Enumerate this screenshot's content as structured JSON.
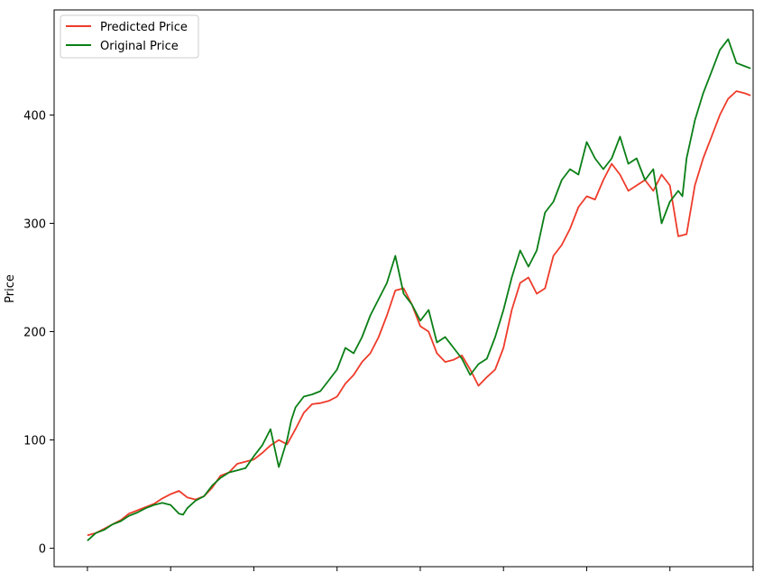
{
  "chart_data": {
    "type": "line",
    "title": "",
    "xlabel": "",
    "ylabel": "Price",
    "xlim": [
      -40,
      800
    ],
    "ylim": [
      -17,
      497
    ],
    "y_ticks": [
      0,
      100,
      200,
      300,
      400
    ],
    "x_tick_count": 9,
    "x_tick_labels_visible": false,
    "grid": false,
    "legend_position": "top-left",
    "series": [
      {
        "name": "Predicted Price",
        "color": "#ee3b2a",
        "x": [
          0,
          10,
          20,
          30,
          40,
          50,
          60,
          70,
          80,
          90,
          100,
          110,
          120,
          130,
          140,
          150,
          160,
          170,
          180,
          190,
          200,
          210,
          220,
          230,
          240,
          250,
          260,
          270,
          280,
          290,
          300,
          310,
          320,
          330,
          340,
          350,
          360,
          370,
          380,
          390,
          400,
          410,
          420,
          430,
          440,
          450,
          460,
          470,
          480,
          490,
          500,
          510,
          520,
          530,
          540,
          550,
          560,
          570,
          580,
          590,
          600,
          610,
          620,
          630,
          640,
          650,
          660,
          670,
          680,
          690,
          700,
          710,
          720,
          730,
          740,
          750,
          760,
          770,
          780,
          790,
          797
        ],
        "y": [
          12,
          14,
          18,
          22,
          26,
          32,
          35,
          38,
          41,
          46,
          50,
          53,
          47,
          45,
          48,
          56,
          67,
          70,
          78,
          80,
          82,
          88,
          95,
          100,
          96,
          110,
          125,
          133,
          134,
          136,
          140,
          152,
          160,
          172,
          180,
          195,
          215,
          238,
          240,
          225,
          205,
          200,
          180,
          172,
          174,
          178,
          165,
          150,
          158,
          165,
          185,
          220,
          245,
          250,
          235,
          240,
          270,
          280,
          295,
          315,
          325,
          322,
          340,
          355,
          345,
          330,
          335,
          340,
          330,
          345,
          335,
          288,
          290,
          335,
          360,
          380,
          400,
          415,
          422,
          420,
          418
        ]
      },
      {
        "name": "Original Price",
        "color": "#0a7f16",
        "x": [
          0,
          10,
          20,
          30,
          40,
          50,
          60,
          70,
          80,
          90,
          100,
          110,
          115,
          120,
          130,
          140,
          150,
          160,
          170,
          180,
          190,
          200,
          210,
          220,
          230,
          240,
          245,
          250,
          260,
          270,
          280,
          290,
          300,
          310,
          320,
          330,
          340,
          350,
          360,
          370,
          380,
          390,
          400,
          410,
          420,
          430,
          440,
          450,
          460,
          470,
          480,
          490,
          500,
          510,
          520,
          530,
          540,
          550,
          560,
          570,
          580,
          590,
          600,
          610,
          620,
          630,
          640,
          650,
          660,
          670,
          680,
          690,
          700,
          710,
          715,
          720,
          730,
          740,
          750,
          760,
          770,
          780,
          790,
          797
        ],
        "y": [
          7,
          14,
          17,
          22,
          25,
          30,
          33,
          37,
          40,
          42,
          40,
          32,
          31,
          37,
          44,
          48,
          58,
          65,
          70,
          72,
          74,
          85,
          95,
          110,
          75,
          100,
          118,
          130,
          140,
          142,
          145,
          155,
          165,
          185,
          180,
          195,
          215,
          230,
          245,
          270,
          235,
          225,
          210,
          220,
          190,
          195,
          185,
          175,
          160,
          170,
          175,
          195,
          220,
          250,
          275,
          260,
          275,
          310,
          320,
          340,
          350,
          345,
          375,
          360,
          350,
          360,
          380,
          355,
          360,
          340,
          350,
          300,
          320,
          330,
          325,
          360,
          395,
          420,
          440,
          460,
          470,
          448,
          445,
          443
        ]
      }
    ]
  }
}
